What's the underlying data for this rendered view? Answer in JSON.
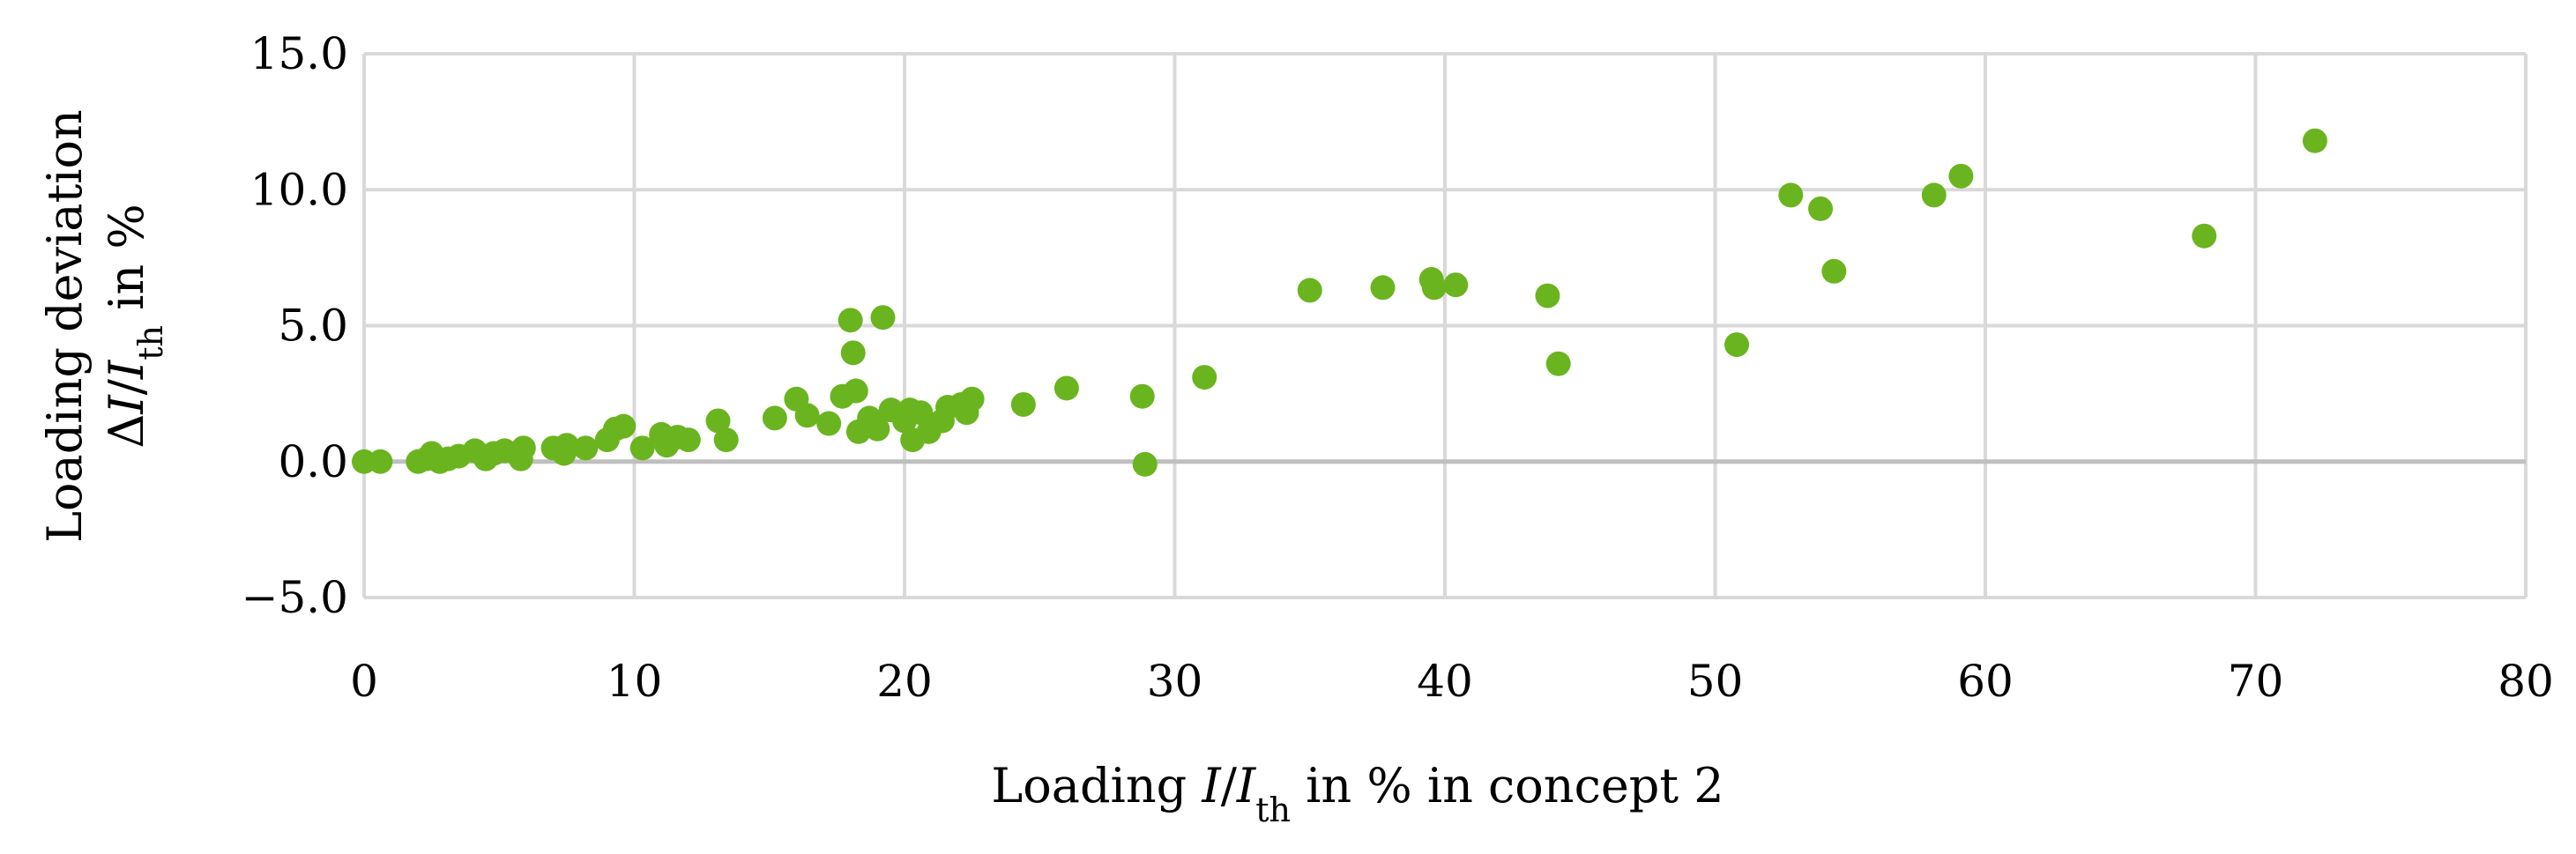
{
  "chart_data": {
    "type": "scatter",
    "xlabel_parts": [
      "Loading ",
      "I",
      "/",
      "I",
      "th",
      " in % in concept 2"
    ],
    "ylabel_line1": "Loading deviation",
    "ylabel_line2_parts": [
      "Δ",
      "I",
      "/",
      "I",
      "th",
      " in %"
    ],
    "xlim": [
      0,
      80
    ],
    "ylim": [
      -5,
      15
    ],
    "xticks": [
      0,
      10,
      20,
      30,
      40,
      50,
      60,
      70,
      80
    ],
    "yticks": [
      -5,
      0,
      5,
      10,
      15
    ],
    "xtick_labels": [
      "0",
      "10",
      "20",
      "30",
      "40",
      "50",
      "60",
      "70",
      "80"
    ],
    "ytick_labels": [
      "−5.0",
      "0.0",
      "5.0",
      "10.0",
      "15.0"
    ],
    "grid": true,
    "marker_color": "#6ab51f",
    "grid_color": "#d9d9d9",
    "zero_line_color": "#bfbfbf",
    "points": [
      [
        0.0,
        0.0
      ],
      [
        0.6,
        0.0
      ],
      [
        2.0,
        0.0
      ],
      [
        2.3,
        0.1
      ],
      [
        2.5,
        0.3
      ],
      [
        2.8,
        0.0
      ],
      [
        3.1,
        0.1
      ],
      [
        3.5,
        0.2
      ],
      [
        4.1,
        0.4
      ],
      [
        4.5,
        0.1
      ],
      [
        4.8,
        0.3
      ],
      [
        5.2,
        0.4
      ],
      [
        5.8,
        0.1
      ],
      [
        5.9,
        0.5
      ],
      [
        7.0,
        0.5
      ],
      [
        7.4,
        0.3
      ],
      [
        7.5,
        0.6
      ],
      [
        8.2,
        0.5
      ],
      [
        9.0,
        0.8
      ],
      [
        9.3,
        1.2
      ],
      [
        9.6,
        1.3
      ],
      [
        10.3,
        0.5
      ],
      [
        11.0,
        1.0
      ],
      [
        11.2,
        0.6
      ],
      [
        11.6,
        0.9
      ],
      [
        12.0,
        0.8
      ],
      [
        13.1,
        1.5
      ],
      [
        13.4,
        0.8
      ],
      [
        15.2,
        1.6
      ],
      [
        16.0,
        2.3
      ],
      [
        16.4,
        1.7
      ],
      [
        17.2,
        1.4
      ],
      [
        17.7,
        2.4
      ],
      [
        18.0,
        5.2
      ],
      [
        18.1,
        4.0
      ],
      [
        18.2,
        2.6
      ],
      [
        18.3,
        1.1
      ],
      [
        18.7,
        1.6
      ],
      [
        19.0,
        1.2
      ],
      [
        19.2,
        5.3
      ],
      [
        19.5,
        1.9
      ],
      [
        20.0,
        1.5
      ],
      [
        20.2,
        1.9
      ],
      [
        20.3,
        0.8
      ],
      [
        20.6,
        1.8
      ],
      [
        20.9,
        1.1
      ],
      [
        21.4,
        1.5
      ],
      [
        21.6,
        2.0
      ],
      [
        22.1,
        2.1
      ],
      [
        22.3,
        1.8
      ],
      [
        22.5,
        2.3
      ],
      [
        24.4,
        2.1
      ],
      [
        26.0,
        2.7
      ],
      [
        28.8,
        2.4
      ],
      [
        28.9,
        -0.1
      ],
      [
        31.1,
        3.1
      ],
      [
        35.0,
        6.3
      ],
      [
        37.7,
        6.4
      ],
      [
        39.5,
        6.7
      ],
      [
        39.6,
        6.4
      ],
      [
        40.4,
        6.5
      ],
      [
        43.8,
        6.1
      ],
      [
        44.2,
        3.6
      ],
      [
        50.8,
        4.3
      ],
      [
        52.8,
        9.8
      ],
      [
        53.9,
        9.3
      ],
      [
        54.4,
        7.0
      ],
      [
        58.1,
        9.8
      ],
      [
        59.1,
        10.5
      ],
      [
        68.1,
        8.3
      ],
      [
        72.2,
        11.8
      ]
    ]
  }
}
